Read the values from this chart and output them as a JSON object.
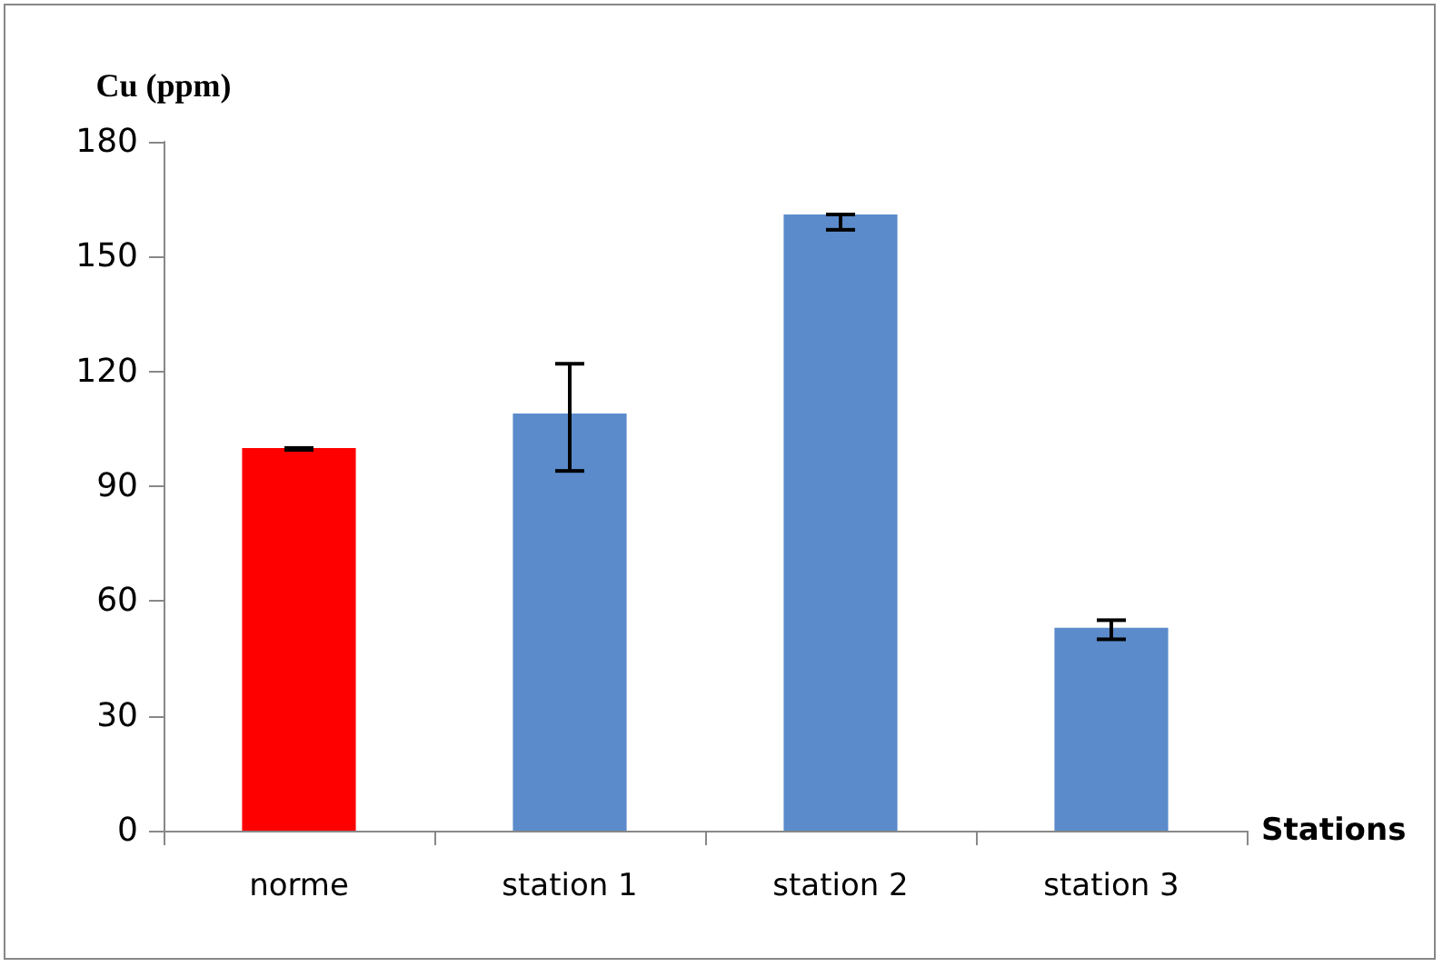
{
  "chart_data": {
    "type": "bar",
    "ylabel": "Cu (ppm)",
    "xlabel": "Stations",
    "categories": [
      "norme",
      "station 1",
      "station 2",
      "station 3"
    ],
    "values": [
      100,
      109,
      161,
      53
    ],
    "colors": [
      "#ff0000",
      "#5b8bcb",
      "#5b8bcb",
      "#5b8bcb"
    ],
    "errors": [
      [
        99.5,
        100
      ],
      [
        94,
        122
      ],
      [
        157,
        161
      ],
      [
        50,
        55
      ]
    ],
    "ylim": [
      0,
      180
    ],
    "yticks": [
      0,
      30,
      60,
      90,
      120,
      150,
      180
    ],
    "grid": false
  }
}
